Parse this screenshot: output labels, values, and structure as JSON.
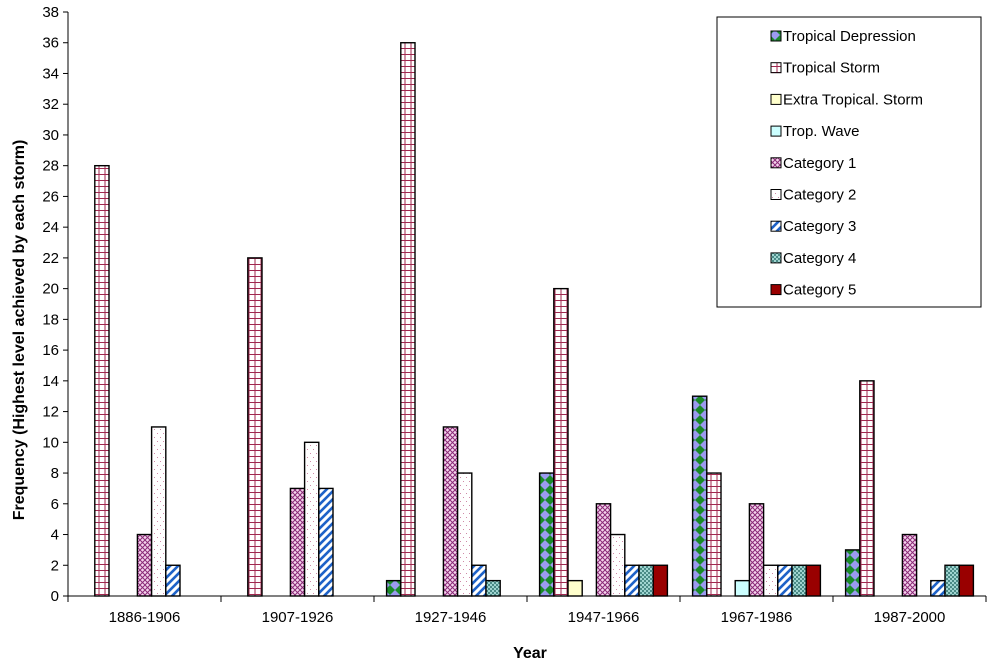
{
  "chart_data": {
    "type": "bar",
    "title": "",
    "xlabel": "Year",
    "ylabel": "Frequency (Highest level achieved by each storm)",
    "ylim": [
      0,
      38
    ],
    "ytick_step": 2,
    "grid": false,
    "legend_position": "top-right",
    "categories": [
      "1886-1906",
      "1907-1926",
      "1927-1946",
      "1947-1966",
      "1967-1986",
      "1987-2000"
    ],
    "series": [
      {
        "name": "Tropical Depression",
        "pattern": "diamond",
        "colors": [
          "#1a8a2a",
          "#9b9bf0"
        ],
        "values": [
          0,
          0,
          1,
          8,
          13,
          3
        ]
      },
      {
        "name": "Tropical Storm",
        "pattern": "grid",
        "colors": [
          "#ffffff",
          "#a0284f"
        ],
        "values": [
          28,
          22,
          36,
          20,
          8,
          14
        ]
      },
      {
        "name": "Extra Tropical. Storm",
        "pattern": "solid",
        "colors": [
          "#ffffcc",
          "#000000"
        ],
        "values": [
          0,
          0,
          0,
          1,
          0,
          0
        ]
      },
      {
        "name": "Trop. Wave",
        "pattern": "solid",
        "colors": [
          "#ccffff",
          "#000000"
        ],
        "values": [
          0,
          0,
          0,
          0,
          1,
          0
        ]
      },
      {
        "name": "Category 1",
        "pattern": "crosshatch",
        "colors": [
          "#f4d4ec",
          "#8b2a78"
        ],
        "values": [
          4,
          7,
          11,
          6,
          6,
          4
        ]
      },
      {
        "name": "Category 2",
        "pattern": "dots",
        "colors": [
          "#ffffff",
          "#d08aa8"
        ],
        "values": [
          11,
          10,
          8,
          4,
          2,
          0
        ]
      },
      {
        "name": "Category 3",
        "pattern": "diagonal",
        "colors": [
          "#ffffff",
          "#1e62c8"
        ],
        "values": [
          2,
          7,
          2,
          2,
          2,
          1
        ]
      },
      {
        "name": "Category 4",
        "pattern": "checker",
        "colors": [
          "#9fd4d0",
          "#4a8a86"
        ],
        "values": [
          0,
          0,
          1,
          2,
          2,
          2
        ]
      },
      {
        "name": "Category 5",
        "pattern": "solid",
        "colors": [
          "#990000",
          "#000000"
        ],
        "values": [
          0,
          0,
          0,
          2,
          2,
          2
        ]
      }
    ]
  }
}
